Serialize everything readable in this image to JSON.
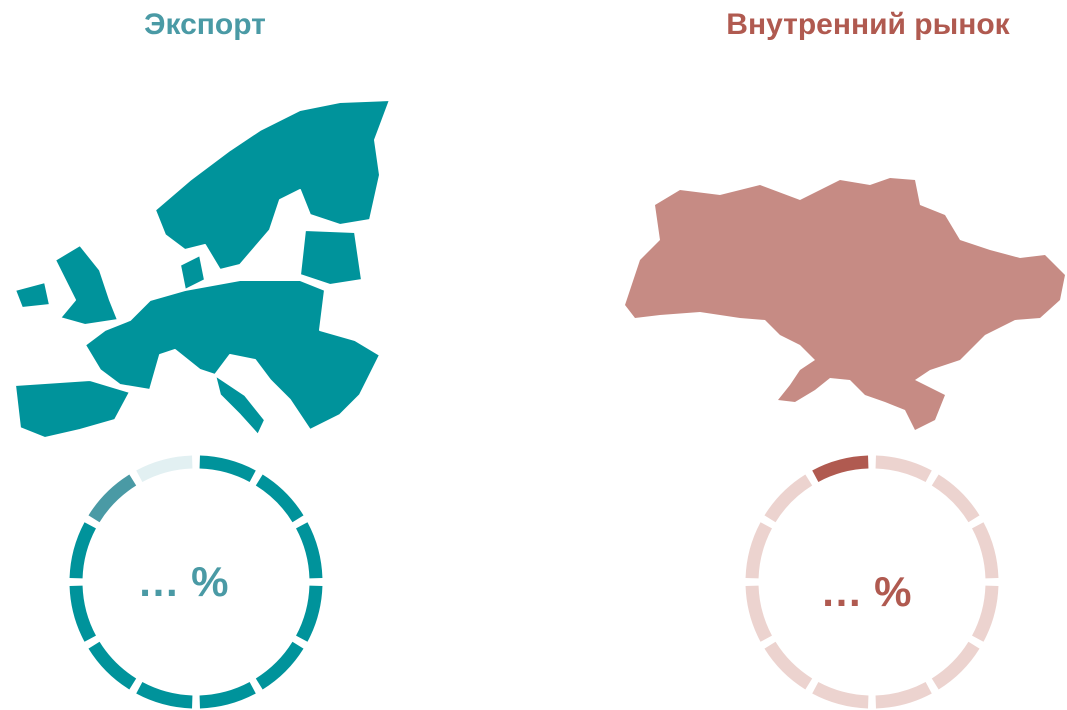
{
  "export": {
    "title": "Экспорт",
    "value_label": "… %"
  },
  "domestic": {
    "title": "Внутренний рынок",
    "value_label": "… %"
  }
}
